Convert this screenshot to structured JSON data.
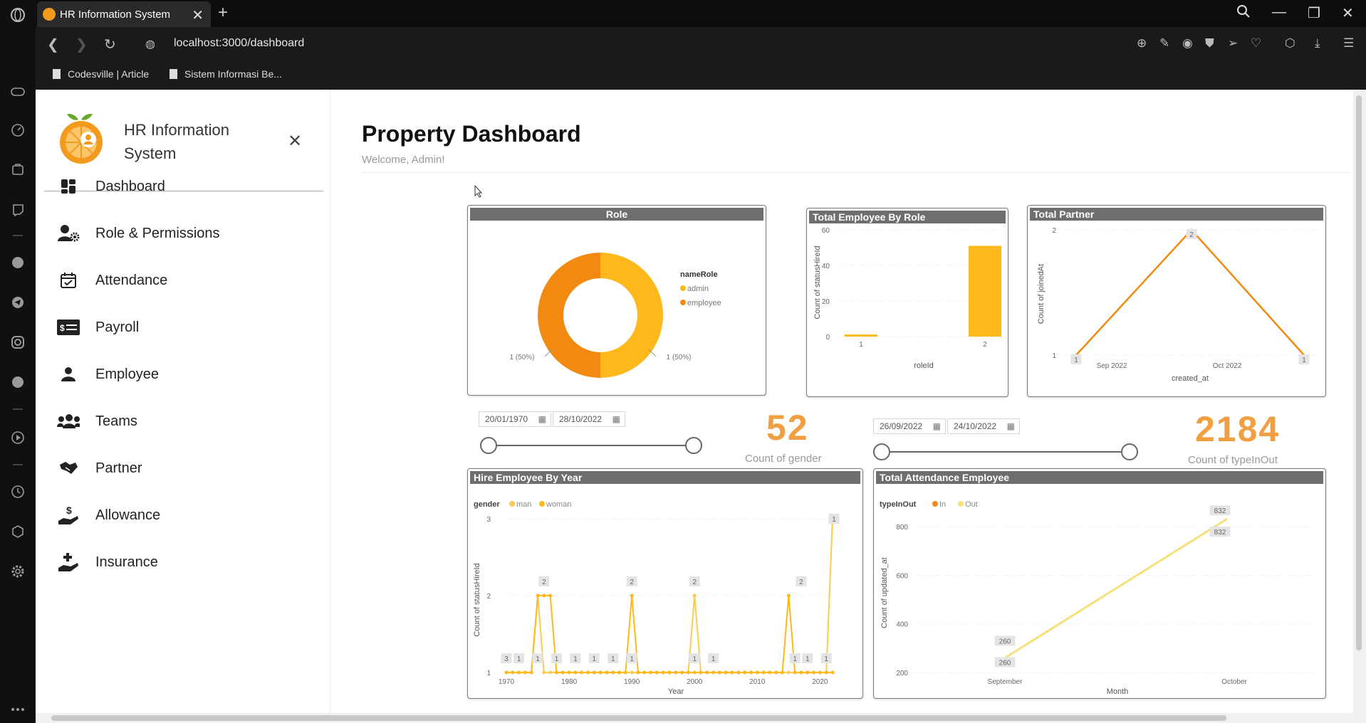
{
  "browser": {
    "tab_title": "HR Information System",
    "url": "localhost:3000/dashboard",
    "bookmarks": [
      "Codesville | Article",
      "Sistem Informasi Be..."
    ]
  },
  "sidebar": {
    "app_title": "HR Information System",
    "items": [
      {
        "label": "Dashboard",
        "icon": "dashboard-icon"
      },
      {
        "label": "Role & Permissions",
        "icon": "user-gear-icon"
      },
      {
        "label": "Attendance",
        "icon": "calendar-check-icon"
      },
      {
        "label": "Payroll",
        "icon": "money-card-icon"
      },
      {
        "label": "Employee",
        "icon": "person-icon"
      },
      {
        "label": "Teams",
        "icon": "team-icon"
      },
      {
        "label": "Partner",
        "icon": "handshake-icon"
      },
      {
        "label": "Allowance",
        "icon": "hand-dollar-icon"
      },
      {
        "label": "Insurance",
        "icon": "hand-medical-icon"
      }
    ]
  },
  "main": {
    "title": "Property Dashboard",
    "subtitle": "Welcome, Admin!"
  },
  "filters": {
    "hire_start": "20/01/1970",
    "hire_end": "28/10/2022",
    "att_start": "26/09/2022",
    "att_end": "24/10/2022"
  },
  "kpis": {
    "gender_value": "52",
    "gender_label": "Count of gender",
    "inout_value": "2184",
    "inout_label": "Count of typeInOut"
  },
  "colors": {
    "orange": "#f28a12",
    "amber": "#ffb81c",
    "light_amber": "#f5cc55",
    "pale_yellow": "#f7e07a"
  },
  "chart_data": [
    {
      "type": "pie",
      "title": "Role",
      "legend_title": "nameRole",
      "categories": [
        "admin",
        "employee"
      ],
      "values": [
        1,
        1
      ],
      "labels": [
        "1 (50%)",
        "1 (50%)"
      ],
      "donut": true
    },
    {
      "type": "bar",
      "title": "Total Employee By Role",
      "xlabel": "roleId",
      "ylabel": "Count of statusHireId",
      "categories": [
        "1",
        "2"
      ],
      "values": [
        1,
        51
      ],
      "ylim": [
        0,
        60
      ],
      "yticks": [
        0,
        20,
        40,
        60
      ]
    },
    {
      "type": "line",
      "title": "Total Partner",
      "xlabel": "created_at",
      "ylabel": "Count of joinedAt",
      "xticks": [
        "Sep 2022",
        "Oct 2022"
      ],
      "yticks": [
        1,
        2
      ],
      "ylim": [
        1,
        2
      ],
      "points": [
        1,
        2,
        1
      ],
      "point_labels": [
        "1",
        "2",
        "1"
      ]
    },
    {
      "type": "line",
      "title": "Hire Employee By Year",
      "legend_title": "gender",
      "xlabel": "Year",
      "ylabel": "Count of statusHireId",
      "xticks": [
        "1970",
        "1980",
        "1990",
        "2000",
        "2010",
        "2020"
      ],
      "yticks": [
        1,
        2,
        3
      ],
      "ylim": [
        1,
        3
      ],
      "xlim": [
        1970,
        2022
      ],
      "series": [
        {
          "name": "man",
          "x": [
            1970,
            1971,
            1972,
            1973,
            1974,
            1975,
            1976,
            1977,
            1978,
            1979,
            1980,
            1981,
            1982,
            1983,
            1984,
            1985,
            1986,
            1987,
            1988,
            1989,
            1990,
            1991,
            1992,
            1993,
            1994,
            1995,
            1996,
            1997,
            1998,
            1999,
            2000,
            2001,
            2002,
            2003,
            2004,
            2005,
            2006,
            2007,
            2008,
            2009,
            2010,
            2011,
            2012,
            2013,
            2014,
            2015,
            2016,
            2017,
            2018,
            2019,
            2020,
            2021,
            2022
          ],
          "y": [
            1,
            1,
            1,
            1,
            1,
            2,
            1,
            1,
            1,
            1,
            1,
            1,
            1,
            1,
            1,
            1,
            1,
            1,
            1,
            1,
            1,
            1,
            1,
            1,
            1,
            1,
            1,
            1,
            1,
            1,
            2,
            1,
            1,
            1,
            1,
            1,
            1,
            1,
            1,
            1,
            1,
            1,
            1,
            1,
            1,
            1,
            1,
            1,
            1,
            1,
            1,
            1,
            3
          ]
        },
        {
          "name": "woman",
          "x": [
            1970,
            1971,
            1972,
            1973,
            1974,
            1975,
            1976,
            1977,
            1978,
            1979,
            1980,
            1981,
            1982,
            1983,
            1984,
            1985,
            1986,
            1987,
            1988,
            1989,
            1990,
            1991,
            1992,
            1993,
            1994,
            1995,
            1996,
            1997,
            1998,
            1999,
            2000,
            2001,
            2002,
            2003,
            2004,
            2005,
            2006,
            2007,
            2008,
            2009,
            2010,
            2011,
            2012,
            2013,
            2014,
            2015,
            2016,
            2017,
            2018,
            2019,
            2020,
            2021,
            2022
          ],
          "y": [
            1,
            1,
            1,
            1,
            1,
            2,
            2,
            2,
            1,
            1,
            1,
            1,
            1,
            1,
            1,
            1,
            1,
            1,
            1,
            1,
            2,
            1,
            1,
            1,
            1,
            1,
            1,
            1,
            1,
            1,
            1,
            1,
            1,
            1,
            1,
            1,
            1,
            1,
            1,
            1,
            1,
            1,
            1,
            1,
            1,
            2,
            1,
            1,
            1,
            1,
            1,
            1,
            1
          ]
        }
      ],
      "data_labels": [
        "1",
        "1",
        "2",
        "1",
        "1",
        "1",
        "1",
        "1",
        "2",
        "1",
        "2",
        "1",
        "1",
        "1",
        "2",
        "1",
        "1",
        "3"
      ]
    },
    {
      "type": "line",
      "title": "Total Attendance Employee",
      "legend_title": "typeInOut",
      "xlabel": "Month",
      "ylabel": "Count of updated_at",
      "categories": [
        "September",
        "October"
      ],
      "yticks": [
        200,
        400,
        600,
        800
      ],
      "ylim": [
        200,
        850
      ],
      "series": [
        {
          "name": "In",
          "values": [
            260,
            832
          ]
        },
        {
          "name": "Out",
          "values": [
            260,
            832
          ]
        }
      ],
      "data_labels": [
        "260",
        "260",
        "832",
        "832"
      ]
    }
  ]
}
